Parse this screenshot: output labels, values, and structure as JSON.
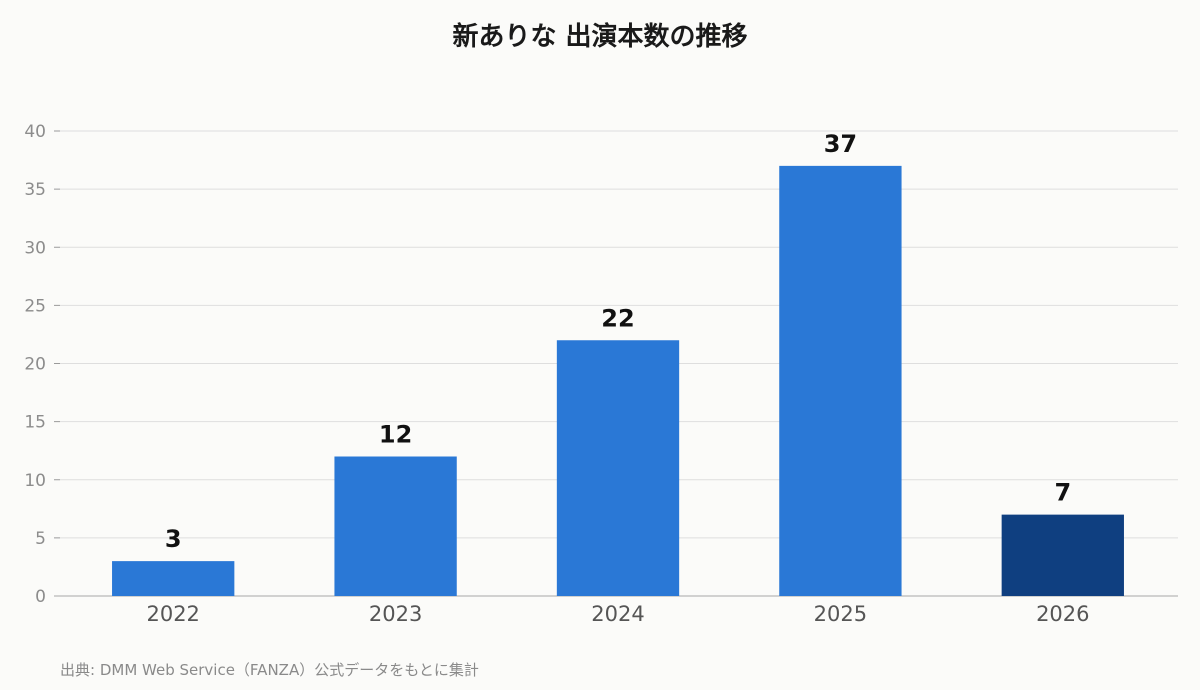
{
  "chart_data": {
    "type": "bar",
    "title": "新ありな 出演本数の推移",
    "categories": [
      "2022",
      "2023",
      "2024",
      "2025",
      "2026"
    ],
    "values": [
      3,
      12,
      22,
      37,
      7
    ],
    "bar_colors": [
      "#2a78d6",
      "#2a78d6",
      "#2a78d6",
      "#2a78d6",
      "#0f3f80"
    ],
    "ylim": [
      0,
      40
    ],
    "yticks": [
      0,
      5,
      10,
      15,
      20,
      25,
      30,
      35,
      40
    ],
    "grid": true,
    "xlabel": "",
    "ylabel": "",
    "data_labels": true
  },
  "source": "出典: DMM Web Service（FANZA）公式データをもとに集計"
}
